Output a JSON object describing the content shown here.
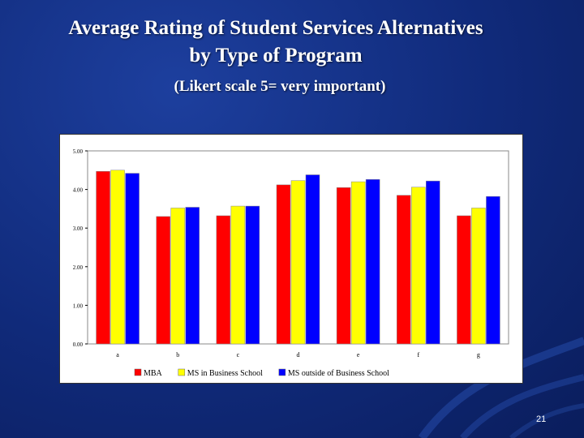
{
  "slide": {
    "title_line1": "Average Rating of Student Services  Alternatives",
    "title_line2": "by Type of Program",
    "subtitle": "(Likert scale 5= very important)",
    "page_number": "21"
  },
  "colors": {
    "background": "#102a7a",
    "mba": "#ff0000",
    "ms_in": "#ffff00",
    "ms_outside": "#0000ff"
  },
  "chart_data": {
    "type": "bar",
    "title": "",
    "xlabel": "",
    "ylabel": "",
    "ylim": [
      0,
      5
    ],
    "y_ticks": [
      "0.00",
      "1.00",
      "2.00",
      "3.00",
      "4.00",
      "5.00"
    ],
    "categories": [
      "a",
      "b",
      "c",
      "d",
      "e",
      "f",
      "g"
    ],
    "series": [
      {
        "name": "MBA",
        "color": "#ff0000",
        "values": [
          4.47,
          3.3,
          3.32,
          4.12,
          4.05,
          3.85,
          3.32
        ]
      },
      {
        "name": "MS in Business School",
        "color": "#ffff00",
        "values": [
          4.5,
          3.52,
          3.57,
          4.23,
          4.2,
          4.06,
          3.52
        ]
      },
      {
        "name": "MS outside of Business School",
        "color": "#0000ff",
        "values": [
          4.42,
          3.54,
          3.57,
          4.38,
          4.26,
          4.22,
          3.82
        ]
      }
    ],
    "grid": false,
    "legend_position": "bottom"
  }
}
